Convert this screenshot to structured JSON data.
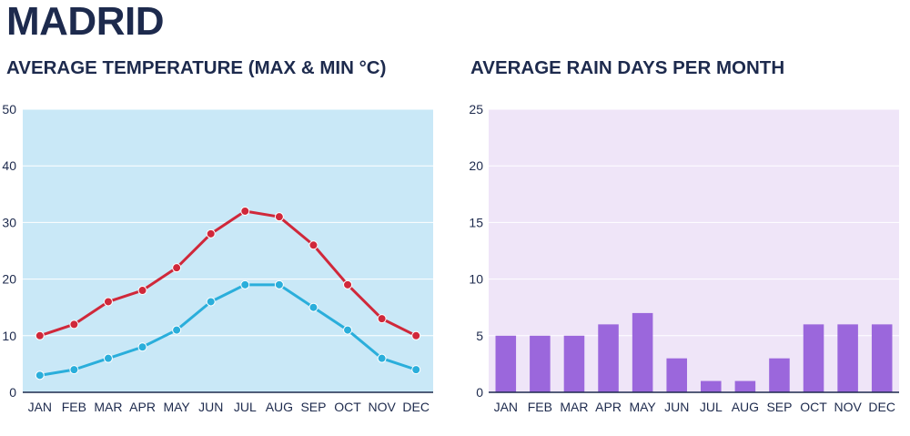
{
  "city": "MADRID",
  "colors": {
    "title": "#1d2a4d",
    "temp_bg": "#c9e8f7",
    "rain_bg": "#efe5f8",
    "max_line": "#d0283a",
    "min_line": "#2aaedb",
    "bar": "#9b67dc",
    "axis": "#1d2a4d",
    "grid": "#ffffff"
  },
  "chart_data": [
    {
      "type": "line",
      "title": "AVERAGE TEMPERATURE (MAX & MIN °C)",
      "categories": [
        "JAN",
        "FEB",
        "MAR",
        "APR",
        "MAY",
        "JUN",
        "JUL",
        "AUG",
        "SEP",
        "OCT",
        "NOV",
        "DEC"
      ],
      "series": [
        {
          "name": "Max",
          "values": [
            10,
            12,
            16,
            18,
            22,
            28,
            32,
            31,
            26,
            19,
            13,
            10
          ]
        },
        {
          "name": "Min",
          "values": [
            3,
            4,
            6,
            8,
            11,
            16,
            19,
            19,
            15,
            11,
            6,
            4
          ]
        }
      ],
      "ylim": [
        0,
        50
      ],
      "yticks": [
        0,
        10,
        20,
        30,
        40,
        50
      ],
      "xlabel": "",
      "ylabel": ""
    },
    {
      "type": "bar",
      "title": "AVERAGE RAIN DAYS PER MONTH",
      "categories": [
        "JAN",
        "FEB",
        "MAR",
        "APR",
        "MAY",
        "JUN",
        "JUL",
        "AUG",
        "SEP",
        "OCT",
        "NOV",
        "DEC"
      ],
      "values": [
        5,
        5,
        5,
        6,
        7,
        3,
        1,
        1,
        3,
        6,
        6,
        6
      ],
      "ylim": [
        0,
        25
      ],
      "yticks": [
        0,
        5,
        10,
        15,
        20,
        25
      ],
      "xlabel": "",
      "ylabel": ""
    }
  ]
}
